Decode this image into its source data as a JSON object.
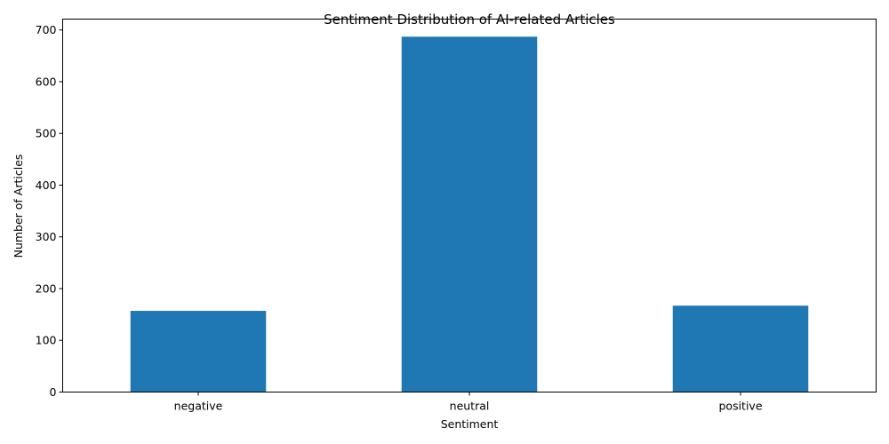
{
  "chart_data": {
    "type": "bar",
    "title": "Sentiment Distribution of AI-related Articles",
    "xlabel": "Sentiment",
    "ylabel": "Number of Articles",
    "categories": [
      "negative",
      "neutral",
      "positive"
    ],
    "values": [
      157,
      687,
      167
    ],
    "ylim": [
      0,
      721
    ],
    "yticks": [
      0,
      100,
      200,
      300,
      400,
      500,
      600,
      700
    ],
    "bar_color": "#1f77b4",
    "grid": false,
    "legend": "none"
  }
}
